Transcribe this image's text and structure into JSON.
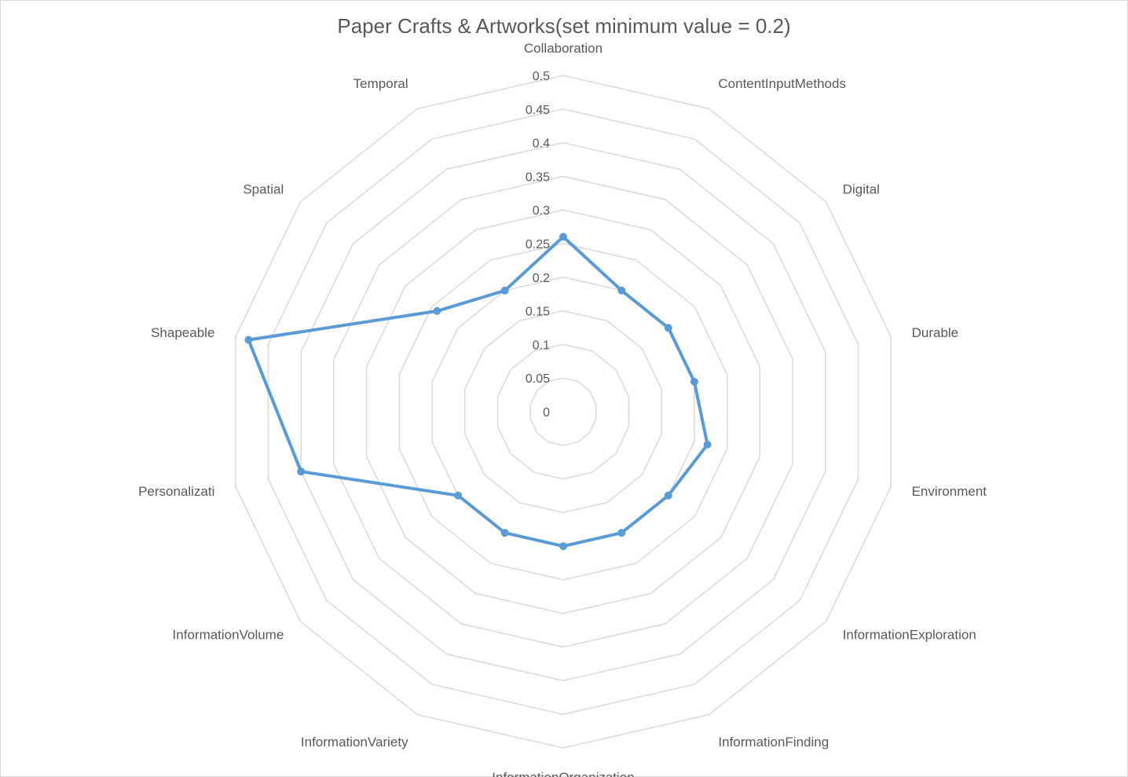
{
  "chart_data": {
    "type": "radar",
    "title": "Paper Crafts & Artworks(set minimum value = 0.2)",
    "categories": [
      "Collaboration",
      "ContentInputMethods",
      "Digital",
      "Durable",
      "Environment",
      "InformationExploration",
      "InformationFinding",
      "InformationOrganization",
      "InformationVariety",
      "InformationVolume",
      "Personalizati",
      "Shapeable",
      "Spatial",
      "Temporal"
    ],
    "rlim": [
      0,
      0.5
    ],
    "ticks": [
      "0",
      "0.05",
      "0.1",
      "0.15",
      "0.2",
      "0.25",
      "0.3",
      "0.35",
      "0.4",
      "0.45",
      "0.5"
    ],
    "grid": true,
    "series": [
      {
        "color": "#5b9bd5",
        "values": [
          0.26,
          0.2,
          0.2,
          0.2,
          0.22,
          0.2,
          0.2,
          0.2,
          0.2,
          0.2,
          0.4,
          0.48,
          0.24,
          0.2
        ]
      }
    ]
  }
}
